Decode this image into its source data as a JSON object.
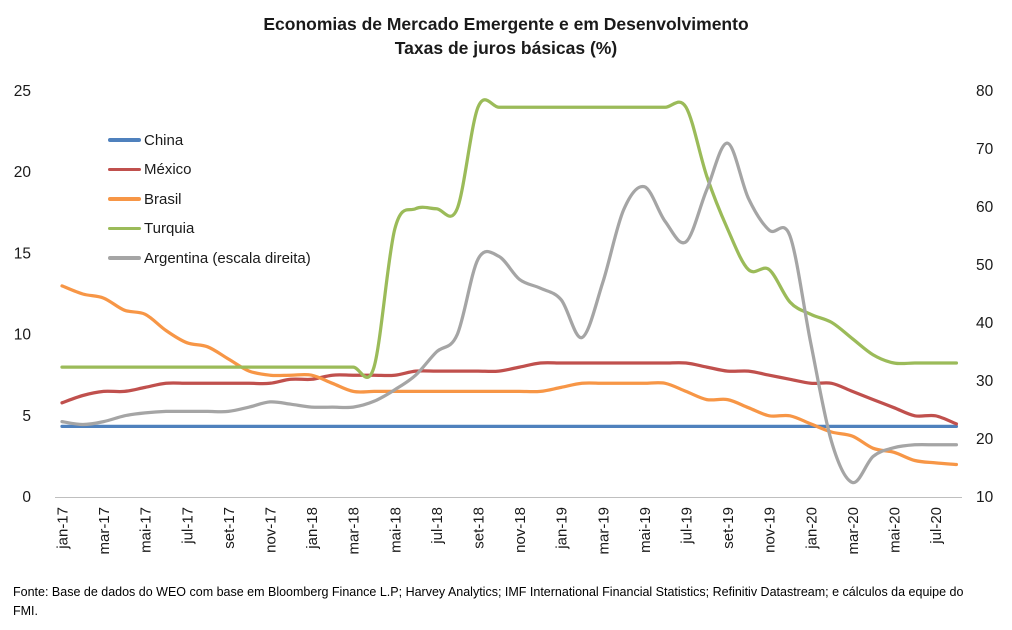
{
  "title": {
    "line1": "Economias de Mercado Emergente e em Desenvolvimento",
    "line2": "Taxas de juros básicas (%)"
  },
  "footer": {
    "text": "Fonte: Base de dados do WEO com base em Bloomberg Finance L.P; Harvey Analytics; IMF International Financial Statistics; Refinitiv Datastream; e cálculos da equipe do FMI."
  },
  "chart_data": {
    "type": "line",
    "smooth_lines": true,
    "grid": false,
    "legend_position": "top-left-inside",
    "categories": [
      "jan-17",
      "fev-17",
      "mar-17",
      "abr-17",
      "mai-17",
      "jun-17",
      "jul-17",
      "ago-17",
      "set-17",
      "out-17",
      "nov-17",
      "dez-17",
      "jan-18",
      "fev-18",
      "mar-18",
      "abr-18",
      "mai-18",
      "jun-18",
      "jul-18",
      "ago-18",
      "set-18",
      "out-18",
      "nov-18",
      "dez-18",
      "jan-19",
      "fev-19",
      "mar-19",
      "abr-19",
      "mai-19",
      "jun-19",
      "jul-19",
      "ago-19",
      "set-19",
      "out-19",
      "nov-19",
      "dez-19",
      "jan-20",
      "fev-20",
      "mar-20",
      "abr-20",
      "mai-20",
      "jun-20",
      "jul-20",
      "ago-20"
    ],
    "tick_labels": [
      "jan-17",
      "mar-17",
      "mai-17",
      "jul-17",
      "set-17",
      "nov-17",
      "jan-18",
      "mar-18",
      "mai-18",
      "jul-18",
      "set-18",
      "nov-18",
      "jan-19",
      "mar-19",
      "mai-19",
      "jul-19",
      "set-19",
      "nov-19",
      "jan-20",
      "mar-20",
      "mai-20",
      "jul-20"
    ],
    "axes": {
      "left": {
        "min": 0,
        "max": 25,
        "ticks": [
          0,
          5,
          10,
          15,
          20,
          25
        ]
      },
      "right": {
        "min": 10,
        "max": 80,
        "ticks": [
          10,
          20,
          30,
          40,
          50,
          60,
          70,
          80
        ]
      }
    },
    "series": [
      {
        "name": "China",
        "axis": "left",
        "color": "#4F81BD",
        "values": [
          4.35,
          4.35,
          4.35,
          4.35,
          4.35,
          4.35,
          4.35,
          4.35,
          4.35,
          4.35,
          4.35,
          4.35,
          4.35,
          4.35,
          4.35,
          4.35,
          4.35,
          4.35,
          4.35,
          4.35,
          4.35,
          4.35,
          4.35,
          4.35,
          4.35,
          4.35,
          4.35,
          4.35,
          4.35,
          4.35,
          4.35,
          4.35,
          4.35,
          4.35,
          4.35,
          4.35,
          4.35,
          4.35,
          4.35,
          4.35,
          4.35,
          4.35,
          4.35,
          4.35
        ]
      },
      {
        "name": "México",
        "axis": "left",
        "color": "#C0504D",
        "values": [
          5.8,
          6.25,
          6.5,
          6.5,
          6.75,
          7.0,
          7.0,
          7.0,
          7.0,
          7.0,
          7.0,
          7.25,
          7.25,
          7.5,
          7.5,
          7.5,
          7.5,
          7.75,
          7.75,
          7.75,
          7.75,
          7.75,
          8.0,
          8.25,
          8.25,
          8.25,
          8.25,
          8.25,
          8.25,
          8.25,
          8.25,
          8.0,
          7.75,
          7.75,
          7.5,
          7.25,
          7.0,
          7.0,
          6.5,
          6.0,
          5.5,
          5.0,
          5.0,
          4.5
        ]
      },
      {
        "name": "Brasil",
        "axis": "left",
        "color": "#F79646",
        "values": [
          13.0,
          12.5,
          12.25,
          11.5,
          11.25,
          10.25,
          9.5,
          9.25,
          8.5,
          7.75,
          7.5,
          7.5,
          7.5,
          7.0,
          6.5,
          6.5,
          6.5,
          6.5,
          6.5,
          6.5,
          6.5,
          6.5,
          6.5,
          6.5,
          6.75,
          7.0,
          7.0,
          7.0,
          7.0,
          7.0,
          6.5,
          6.0,
          6.0,
          5.5,
          5.0,
          5.0,
          4.5,
          4.0,
          3.75,
          3.0,
          2.75,
          2.25,
          2.1,
          2.0
        ]
      },
      {
        "name": "Turquia",
        "axis": "left",
        "color": "#9BBB59",
        "values": [
          8.0,
          8.0,
          8.0,
          8.0,
          8.0,
          8.0,
          8.0,
          8.0,
          8.0,
          8.0,
          8.0,
          8.0,
          8.0,
          8.0,
          8.0,
          8.0,
          16.5,
          17.75,
          17.75,
          17.75,
          24.0,
          24.0,
          24.0,
          24.0,
          24.0,
          24.0,
          24.0,
          24.0,
          24.0,
          24.0,
          24.0,
          19.75,
          16.5,
          14.0,
          14.0,
          12.0,
          11.25,
          10.75,
          9.75,
          8.75,
          8.25,
          8.25,
          8.25,
          8.25
        ]
      },
      {
        "name": "Argentina (escala direita)",
        "axis": "right",
        "color": "#A5A5A5",
        "values": [
          23.0,
          22.5,
          23.0,
          24.0,
          24.5,
          24.75,
          24.75,
          24.75,
          24.75,
          25.5,
          26.4,
          26.0,
          25.5,
          25.5,
          25.5,
          26.5,
          28.5,
          31.0,
          35.0,
          38.0,
          51.0,
          51.5,
          47.5,
          46.0,
          44.0,
          37.5,
          47.0,
          59.5,
          63.5,
          57.5,
          54.0,
          63.0,
          71.0,
          61.5,
          56.0,
          55.0,
          36.5,
          19.5,
          12.5,
          17.0,
          18.5,
          19.0,
          19.0,
          19.0
        ]
      }
    ]
  }
}
